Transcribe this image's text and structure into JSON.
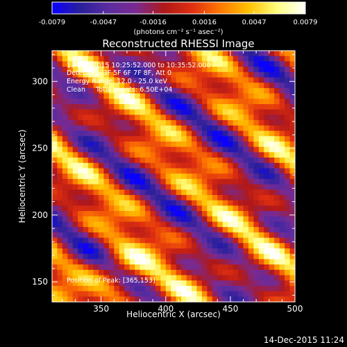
{
  "colors": {
    "background": "#000000",
    "foreground": "#ffffff",
    "palette": [
      "#0a00ff",
      "#2a1f9a",
      "#5a2ca0",
      "#7a2a90",
      "#b01818",
      "#e03010",
      "#ff7a00",
      "#ffc200",
      "#ffff80",
      "#ffffff"
    ]
  },
  "colorbar": {
    "tick_labels": [
      "-0.0079",
      "-0.0047",
      "-0.0016",
      "0.0016",
      "0.0047",
      "0.0079"
    ],
    "range": [
      -0.0079,
      0.0079
    ]
  },
  "units_label": "(photons cm⁻² s⁻¹ asec⁻²)",
  "chart_data": {
    "type": "heatmap",
    "title": "Reconstructed RHESSI Image",
    "xlabel": "Heliocentric X (arcsec)",
    "ylabel": "Heliocentric Y (arcsec)",
    "xlim": [
      312,
      500
    ],
    "ylim": [
      135,
      323
    ],
    "xticks": [
      "350",
      "400",
      "450",
      "500"
    ],
    "yticks": [
      "150",
      "200",
      "250",
      "300"
    ],
    "value_range": [
      -0.0079,
      0.0079
    ],
    "annotations": [
      "13-Dec-2015 10:25:52.000 to 10:35:52.000",
      "Detectors: 3F 5F 6F 7F 8F, Att 0",
      "Energy Range: 12.0 - 25.0 keV",
      "Clean     Total counts: 6.50E+04"
    ],
    "peak_label": "Position of Peak: [365,153]",
    "peak": {
      "x": 365,
      "y": 153
    }
  },
  "footer_timestamp": "14-Dec-2015 11:24"
}
